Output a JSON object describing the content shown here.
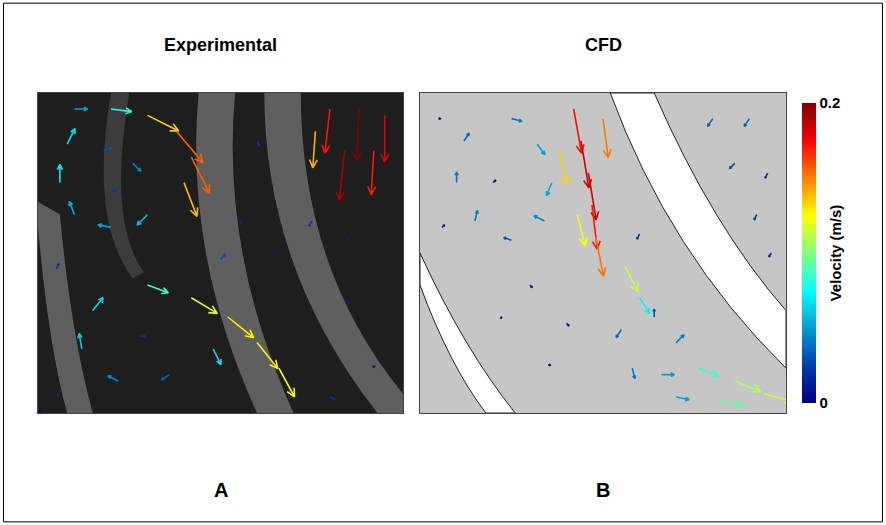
{
  "chart_data": [
    {
      "type": "quiver",
      "title": "Experimental",
      "label": "A",
      "xlim": [
        0,
        1
      ],
      "ylim": [
        0,
        1
      ],
      "tick_labels": false,
      "x": [
        0.1,
        0.2,
        0.3,
        0.38,
        0.42,
        0.4,
        0.3,
        0.2,
        0.1,
        0.06,
        0.08,
        0.18,
        0.26,
        0.22,
        0.8,
        0.88,
        0.95,
        0.84,
        0.92,
        0.76,
        0.3,
        0.42,
        0.52,
        0.6,
        0.66,
        0.48,
        0.36,
        0.22,
        0.12,
        0.15,
        0.28,
        0.55,
        0.65,
        0.75,
        0.85,
        0.85,
        0.92,
        0.5,
        0.05,
        0.6,
        0.05,
        0.8
      ],
      "y": [
        0.95,
        0.95,
        0.93,
        0.88,
        0.8,
        0.72,
        0.62,
        0.58,
        0.62,
        0.72,
        0.84,
        0.82,
        0.78,
        0.7,
        0.95,
        0.95,
        0.93,
        0.82,
        0.82,
        0.88,
        0.4,
        0.36,
        0.3,
        0.22,
        0.14,
        0.2,
        0.12,
        0.1,
        0.2,
        0.32,
        0.24,
        0.6,
        0.5,
        0.6,
        0.55,
        0.35,
        0.15,
        0.48,
        0.45,
        0.85,
        0.05,
        0.05
      ],
      "u": [
        0.05,
        0.08,
        0.12,
        0.1,
        0.07,
        0.05,
        -0.04,
        -0.05,
        -0.02,
        0.0,
        0.03,
        0.03,
        0.03,
        -0.02,
        -0.02,
        -0.01,
        0.0,
        -0.02,
        -0.01,
        -0.01,
        0.08,
        0.1,
        0.1,
        0.08,
        0.06,
        0.03,
        -0.03,
        -0.04,
        -0.01,
        0.04,
        0.02,
        0.01,
        0.0,
        -0.01,
        0.0,
        0.01,
        0.0,
        0.02,
        0.01,
        0.01,
        0.01,
        0.02
      ],
      "v": [
        0.0,
        -0.01,
        -0.06,
        -0.12,
        -0.14,
        -0.13,
        -0.04,
        0.01,
        0.05,
        0.07,
        0.06,
        0.01,
        -0.03,
        -0.01,
        -0.17,
        -0.2,
        -0.18,
        -0.19,
        -0.17,
        -0.14,
        -0.03,
        -0.06,
        -0.08,
        -0.1,
        -0.11,
        -0.06,
        -0.02,
        0.02,
        0.06,
        0.05,
        0.0,
        -0.01,
        -0.01,
        -0.02,
        -0.015,
        -0.01,
        -0.01,
        0.02,
        0.02,
        -0.02,
        0.01,
        -0.01
      ]
    },
    {
      "type": "quiver",
      "title": "CFD",
      "label": "B",
      "xlim": [
        0,
        1
      ],
      "ylim": [
        0,
        1
      ],
      "tick_labels": false,
      "x": [
        0.42,
        0.44,
        0.46,
        0.47,
        0.48,
        0.38,
        0.5,
        0.43,
        0.56,
        0.25,
        0.12,
        0.1,
        0.15,
        0.25,
        0.34,
        0.36,
        0.32,
        0.2,
        0.05,
        0.6,
        0.55,
        0.58,
        0.66,
        0.7,
        0.64,
        0.76,
        0.86,
        0.94,
        0.82,
        0.7,
        0.8,
        0.9,
        0.95,
        0.92,
        0.96,
        0.86,
        0.3,
        0.22,
        0.4,
        0.35,
        0.6,
        0.06
      ],
      "y": [
        0.95,
        0.85,
        0.75,
        0.65,
        0.55,
        0.82,
        0.92,
        0.62,
        0.46,
        0.92,
        0.85,
        0.72,
        0.6,
        0.54,
        0.6,
        0.72,
        0.84,
        0.72,
        0.92,
        0.36,
        0.26,
        0.14,
        0.12,
        0.22,
        0.3,
        0.14,
        0.1,
        0.06,
        0.04,
        0.05,
        0.92,
        0.92,
        0.75,
        0.62,
        0.5,
        0.78,
        0.4,
        0.3,
        0.28,
        0.15,
        0.56,
        0.58
      ],
      "u": [
        0.03,
        0.03,
        0.03,
        0.02,
        0.03,
        0.03,
        0.02,
        0.03,
        0.05,
        0.04,
        0.02,
        0.0,
        0.01,
        -0.03,
        -0.04,
        -0.02,
        0.03,
        0.01,
        0.01,
        0.04,
        -0.02,
        0.01,
        0.05,
        0.03,
        0.0,
        0.08,
        0.1,
        0.11,
        0.09,
        0.05,
        -0.02,
        -0.02,
        -0.01,
        -0.01,
        -0.01,
        -0.02,
        0.01,
        0.005,
        0.01,
        0.01,
        -0.01,
        0.01
      ],
      "v": [
        -0.17,
        -0.18,
        -0.18,
        -0.17,
        -0.15,
        -0.13,
        -0.15,
        -0.12,
        -0.1,
        -0.01,
        0.03,
        0.04,
        0.04,
        0.01,
        0.02,
        -0.05,
        -0.04,
        0.01,
        0.0,
        -0.06,
        -0.03,
        -0.04,
        0.0,
        0.03,
        0.03,
        -0.03,
        -0.04,
        -0.03,
        -0.02,
        -0.01,
        -0.03,
        -0.03,
        -0.02,
        -0.02,
        -0.015,
        -0.02,
        -0.01,
        -0.005,
        -0.01,
        0.0,
        -0.02,
        0.01
      ]
    }
  ],
  "colorbar": {
    "title": "Velocity (m/s)",
    "range": [
      0,
      0.2
    ],
    "ticks": [
      0,
      0.2
    ]
  }
}
